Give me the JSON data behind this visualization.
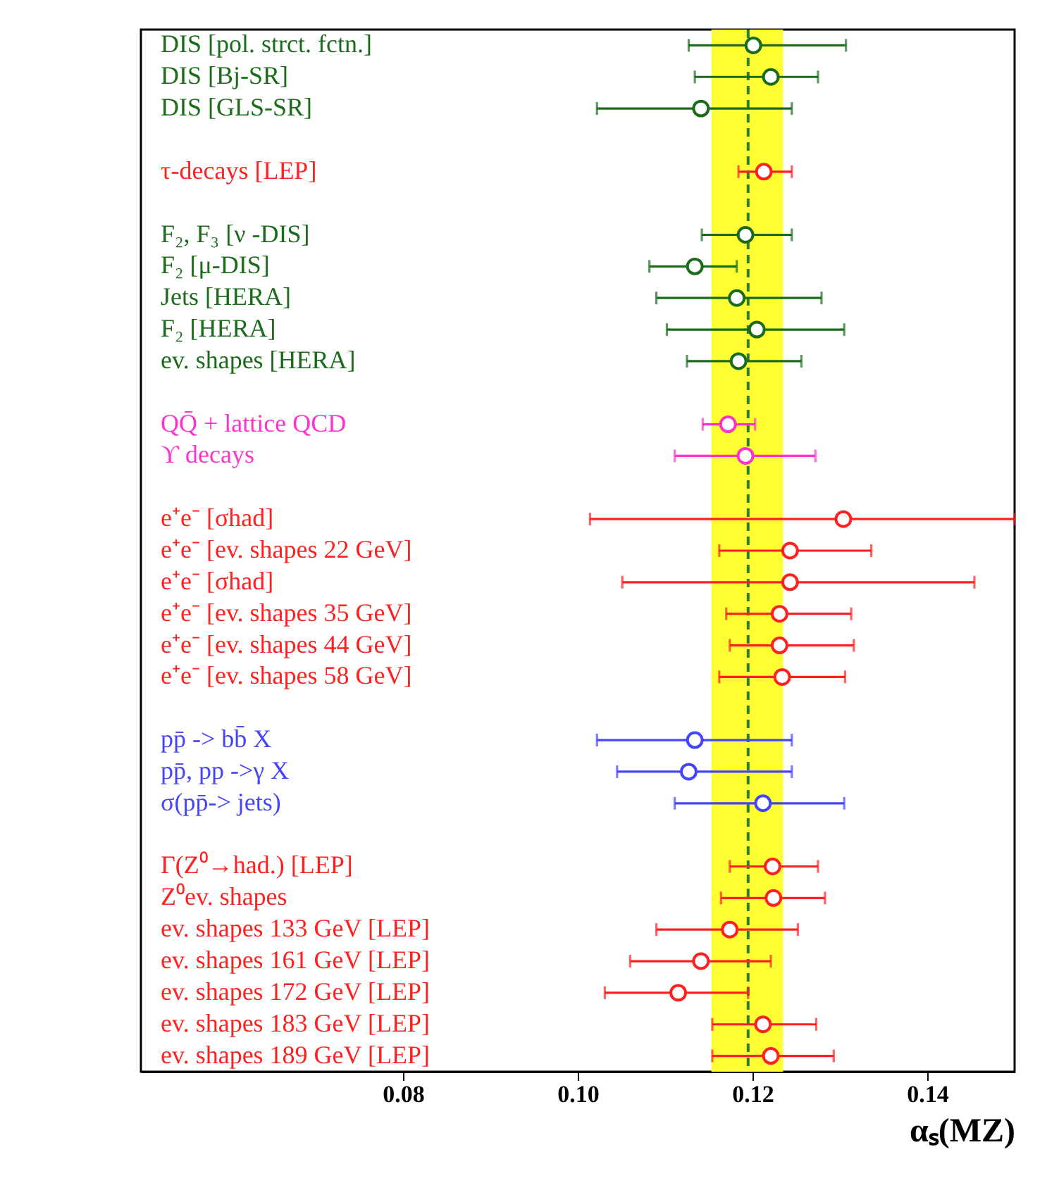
{
  "chart_data": {
    "type": "scatter",
    "orientation": "horizontal",
    "xlabel": "αₛ(MZ)",
    "marker": "circle",
    "grid": false,
    "categories": [
      "DIS [pol. strct. fctn.]",
      "DIS [Bj-SR]",
      "DIS [GLS-SR]",
      null,
      "τ-decays  [LEP]",
      null,
      "F₂, F₃  [ν -DIS]",
      "F₂ [μ-DIS]",
      "Jets [HERA]",
      "F₂ [HERA]",
      "ev. shapes [HERA]",
      null,
      "QQ̄ + lattice QCD",
      "ϒ decays",
      null,
      "e⁺e⁻ [σhad]",
      "e⁺e⁻ [ev. shapes 22 GeV]",
      "e⁺e⁻ [σhad]",
      "e⁺e⁻ [ev. shapes 35 GeV]",
      "e⁺e⁻ [ev. shapes 44 GeV]",
      "e⁺e⁻ [ev. shapes 58 GeV]",
      null,
      "pp̄ -> bb̄ X",
      "pp̄, pp ->γ X",
      "σ(pp̄-> jets)",
      null,
      "Γ(Z⁰→had.) [LEP]",
      "Z⁰ev. shapes",
      "ev. shapes 133 GeV [LEP]",
      "ev. shapes 161 GeV [LEP]",
      "ev. shapes 172 GeV [LEP]",
      "ev. shapes 183 GeV [LEP]",
      "ev. shapes 189 GeV [LEP]"
    ],
    "series": [
      {
        "color": "#1a6b1a",
        "values": [
          0.1201,
          0.1221,
          0.1141,
          null,
          null,
          null,
          null,
          null,
          null,
          null,
          null,
          null,
          null,
          null,
          null,
          null,
          null,
          null,
          null,
          null,
          null,
          null,
          null,
          null,
          null,
          null,
          null,
          null,
          null,
          null,
          null,
          null,
          null
        ],
        "errors": [
          [
            0.1127,
            0.1307
          ],
          [
            0.1134,
            0.1275
          ],
          [
            0.1022,
            0.1245
          ],
          null,
          null,
          null,
          null,
          null,
          null,
          null,
          null,
          null,
          null,
          null,
          null,
          null,
          null,
          null,
          null,
          null,
          null,
          null,
          null,
          null,
          null,
          null,
          null,
          null,
          null,
          null,
          null,
          null,
          null
        ]
      },
      {
        "color": "#ff2020",
        "values": [
          null,
          null,
          null,
          null,
          0.1213,
          null,
          null,
          null,
          null,
          null,
          null,
          null,
          null,
          null,
          null,
          0.1304,
          null,
          null,
          null,
          null,
          null,
          null,
          null,
          null,
          null,
          null,
          0.1223,
          null,
          null,
          null,
          null,
          null,
          null
        ],
        "errors": [
          null,
          null,
          null,
          null,
          [
            0.1184,
            0.1245
          ],
          null,
          null,
          null,
          null,
          null,
          null,
          null,
          null,
          null,
          null,
          [
            0.1014,
            0.15
          ],
          null,
          null,
          null,
          null,
          null,
          null,
          null,
          null,
          null,
          null,
          [
            0.1174,
            0.1275
          ],
          null,
          null,
          null,
          null,
          null,
          null
        ]
      },
      {
        "color": "#1a6b1a",
        "values": [
          null,
          null,
          null,
          null,
          null,
          null,
          0.1192,
          0.1134,
          0.1182,
          0.1205,
          0.1184,
          null,
          null,
          null,
          null,
          null,
          null,
          null,
          null,
          null,
          null,
          null,
          null,
          null,
          null,
          null,
          null,
          null,
          null,
          null,
          null,
          null,
          null
        ],
        "errors": [
          null,
          null,
          null,
          null,
          null,
          null,
          [
            0.1142,
            0.1245
          ],
          [
            0.1082,
            0.1182
          ],
          [
            0.109,
            0.1279
          ],
          [
            0.1102,
            0.1305
          ],
          [
            0.1125,
            0.1256
          ],
          null,
          null,
          null,
          null,
          null,
          null,
          null,
          null,
          null,
          null,
          null,
          null,
          null,
          null,
          null,
          null,
          null,
          null,
          null,
          null,
          null,
          null
        ]
      },
      {
        "color": "#ff33cc",
        "values": [
          null,
          null,
          null,
          null,
          null,
          null,
          null,
          null,
          null,
          null,
          null,
          null,
          0.1172,
          0.1192,
          null,
          null,
          null,
          null,
          null,
          null,
          null,
          null,
          null,
          null,
          null,
          null,
          null,
          null,
          null,
          null,
          null,
          null,
          null
        ],
        "errors": [
          null,
          null,
          null,
          null,
          null,
          null,
          null,
          null,
          null,
          null,
          null,
          null,
          [
            0.1143,
            0.1203
          ],
          [
            0.1111,
            0.1272
          ],
          null,
          null,
          null,
          null,
          null,
          null,
          null,
          null,
          null,
          null,
          null,
          null,
          null,
          null,
          null,
          null,
          null,
          null,
          null
        ]
      },
      {
        "color": "#ff2020",
        "values": [
          null,
          null,
          null,
          null,
          null,
          null,
          null,
          null,
          null,
          null,
          null,
          null,
          null,
          null,
          null,
          null,
          0.1243,
          0.1243,
          0.1231,
          0.1231,
          0.1234,
          null,
          null,
          null,
          null,
          null,
          null,
          0.1224,
          0.1174,
          0.1141,
          0.1115,
          0.1212,
          0.1221
        ],
        "errors": [
          null,
          null,
          null,
          null,
          null,
          null,
          null,
          null,
          null,
          null,
          null,
          null,
          null,
          null,
          null,
          null,
          [
            0.1162,
            0.1336
          ],
          [
            0.1051,
            0.1454
          ],
          [
            0.117,
            0.1313
          ],
          [
            0.1174,
            0.1316
          ],
          [
            0.1162,
            0.1306
          ],
          null,
          null,
          null,
          null,
          null,
          null,
          [
            0.1164,
            0.1283
          ],
          [
            0.109,
            0.1252
          ],
          [
            0.106,
            0.1221
          ],
          [
            0.1031,
            0.1195
          ],
          [
            0.1154,
            0.1273
          ],
          [
            0.1154,
            0.1293
          ]
        ]
      },
      {
        "color": "#4444ff",
        "values": [
          null,
          null,
          null,
          null,
          null,
          null,
          null,
          null,
          null,
          null,
          null,
          null,
          null,
          null,
          null,
          null,
          null,
          null,
          null,
          null,
          null,
          null,
          0.1134,
          0.1127,
          0.1212,
          null,
          null,
          null,
          null,
          null,
          null,
          null,
          null
        ],
        "errors": [
          null,
          null,
          null,
          null,
          null,
          null,
          null,
          null,
          null,
          null,
          null,
          null,
          null,
          null,
          null,
          null,
          null,
          null,
          null,
          null,
          null,
          null,
          [
            0.1022,
            0.1245
          ],
          [
            0.1045,
            0.1245
          ],
          [
            0.1111,
            0.1305
          ],
          null,
          null,
          null,
          null,
          null,
          null,
          null,
          null
        ]
      }
    ],
    "xlim": [
      0.05,
      0.15
    ],
    "xticks": [
      {
        "value": 0.08,
        "label": "0.08"
      },
      {
        "value": 0.1,
        "label": "0.10"
      },
      {
        "value": 0.12,
        "label": "0.12"
      },
      {
        "value": 0.14,
        "label": "0.14"
      }
    ],
    "ref_lines": [
      {
        "axis": "x",
        "value": 0.1195,
        "color": "#2e7d2e",
        "line_style": "dashed"
      }
    ],
    "bands": [
      {
        "axis": "x",
        "from": 0.1153,
        "to": 0.1235,
        "color": "#ffff33"
      }
    ]
  }
}
